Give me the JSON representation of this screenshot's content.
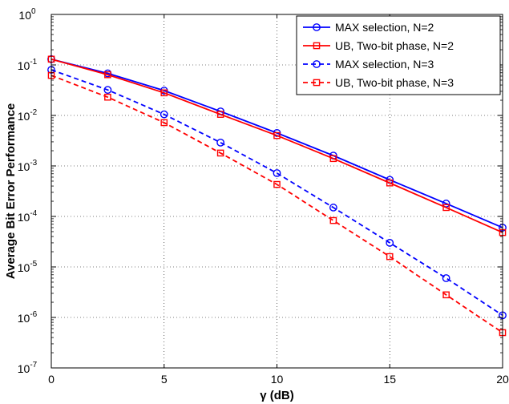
{
  "chart_data": {
    "type": "line",
    "xlabel": "γ (dB)",
    "ylabel": "Average Bit Error Performance",
    "xlim": [
      0,
      20
    ],
    "ylim": [
      1e-07,
      1
    ],
    "yscale": "log",
    "grid": true,
    "legend_position": "top-right",
    "x_ticks": [
      "0",
      "5",
      "10",
      "15",
      "20"
    ],
    "y_ticks": [
      {
        "base": "10",
        "exp": "-7"
      },
      {
        "base": "10",
        "exp": "-6"
      },
      {
        "base": "10",
        "exp": "-5"
      },
      {
        "base": "10",
        "exp": "-4"
      },
      {
        "base": "10",
        "exp": "-3"
      },
      {
        "base": "10",
        "exp": "-2"
      },
      {
        "base": "10",
        "exp": "-1"
      },
      {
        "base": "10",
        "exp": "0"
      }
    ],
    "x": [
      0,
      2.5,
      5,
      7.5,
      10,
      12.5,
      15,
      17.5,
      20
    ],
    "series": [
      {
        "name": "MAX selection, N=2",
        "color": "#0000ff",
        "dash": "solid",
        "marker": "circle",
        "values": [
          0.13,
          0.068,
          0.031,
          0.012,
          0.0045,
          0.0016,
          0.00053,
          0.00018,
          6e-05
        ]
      },
      {
        "name": "UB, Two-bit phase, N=2",
        "color": "#ff0000",
        "dash": "solid",
        "marker": "square",
        "values": [
          0.13,
          0.064,
          0.028,
          0.0105,
          0.004,
          0.0014,
          0.00046,
          0.00015,
          4.8e-05
        ]
      },
      {
        "name": "MAX selection, N=3",
        "color": "#0000ff",
        "dash": "dashed",
        "marker": "circle",
        "values": [
          0.08,
          0.032,
          0.0105,
          0.0029,
          0.00072,
          0.00015,
          3e-05,
          6e-06,
          1.1e-06
        ]
      },
      {
        "name": "UB, Two-bit phase, N=3",
        "color": "#ff0000",
        "dash": "dashed",
        "marker": "square",
        "values": [
          0.062,
          0.023,
          0.0072,
          0.0018,
          0.00043,
          8.3e-05,
          1.6e-05,
          2.8e-06,
          5e-07
        ]
      }
    ]
  }
}
